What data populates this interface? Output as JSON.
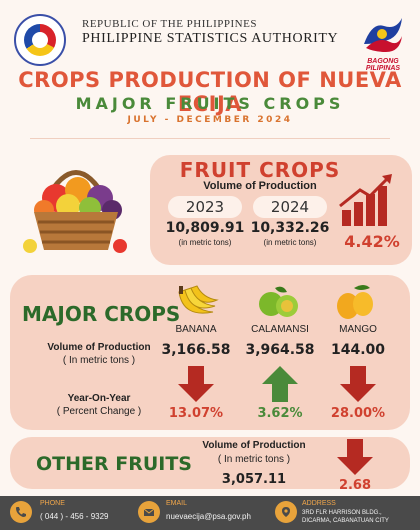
{
  "header": {
    "republic": "REPUBLIC OF THE PHILIPPINES",
    "agency": "PHILIPPINE STATISTICS AUTHORITY",
    "bagong": "BAGONG PILIPINAS",
    "title": "CROPS PRODUCTION OF NUEVA ECIJA",
    "subtitle": "MAJOR FRUITS CROPS",
    "period": "JULY - DECEMBER 2024"
  },
  "fruit_crops": {
    "title": "FRUIT CROPS",
    "label": "Volume of Production",
    "year_a": "2023",
    "year_b": "2024",
    "value_a": "10,809.91",
    "value_b": "10,332.26",
    "unit_a": "(in metric tons)",
    "unit_b": "(in metric tons)",
    "change": "4.42%"
  },
  "major_crops": {
    "title": "MAJOR CROPS",
    "vp_label": "Volume of Production",
    "vp_unit": "( In metric tons )",
    "yoy_label": "Year-On-Year",
    "yoy_unit": "( Percent Change )",
    "crops": [
      {
        "name": "BANANA",
        "value": "3,166.58",
        "pct": "13.07%",
        "direction": "down"
      },
      {
        "name": "CALAMANSI",
        "value": "3,964.58",
        "pct": "3.62%",
        "direction": "up"
      },
      {
        "name": "MANGO",
        "value": "144.00",
        "pct": "28.00%",
        "direction": "down"
      }
    ]
  },
  "other_fruits": {
    "title": "OTHER FRUITS",
    "label": "Volume of Production",
    "unit": "( In metric tons )",
    "value": "3,057.11",
    "pct": "2.68"
  },
  "footer": {
    "phone_head": "PHONE",
    "phone": "( 044 ) - 456 - 9329",
    "email_head": "EMAIL",
    "email": "nuevaecija@psa.gov.ph",
    "addr_head": "ADDRESS",
    "addr_1": "3RD FLR HARRISON BLDG.,",
    "addr_2": "DICARMA, CABANATUAN CITY"
  },
  "colors": {
    "red": "#d0412f",
    "green": "#2c6a2a",
    "panel": "#f6d2c3",
    "up_arrow": "#4a8a3a"
  }
}
